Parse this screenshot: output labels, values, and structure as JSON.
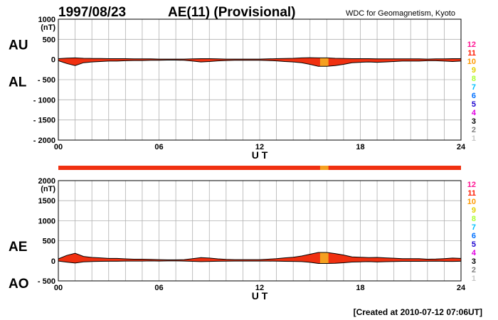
{
  "header": {
    "date": "1997/08/23",
    "title": "AE(11) (Provisional)",
    "source": "WDC for Geomagnetism, Kyoto"
  },
  "footer": {
    "created": "[Created at 2010-07-12 07:06UT]"
  },
  "colors": {
    "fill_main": "#f03010",
    "fill_highlight": "#f5a020",
    "grid": "#b0b0b0",
    "trace": "#000000"
  },
  "station_count_legend": [
    {
      "label": "12",
      "color": "#ff1493"
    },
    {
      "label": "11",
      "color": "#ff1a00"
    },
    {
      "label": "10",
      "color": "#ff9900"
    },
    {
      "label": "9",
      "color": "#e0d000"
    },
    {
      "label": "8",
      "color": "#a8ff30"
    },
    {
      "label": "7",
      "color": "#00c0ff"
    },
    {
      "label": "6",
      "color": "#0070ff"
    },
    {
      "label": "5",
      "color": "#1a00d0"
    },
    {
      "label": "4",
      "color": "#e000e0"
    },
    {
      "label": "3",
      "color": "#000000"
    },
    {
      "label": "2",
      "color": "#808080"
    },
    {
      "label": "1",
      "color": "#c8c8c8"
    }
  ],
  "chart_data": [
    {
      "type": "area",
      "panel": "top",
      "label_upper": "AU",
      "label_lower": "AL",
      "unit": "(nT)",
      "xlabel": "U T",
      "ylim": [
        -2000,
        1000
      ],
      "yticks": [
        "1000",
        "500",
        "0",
        "- 500",
        "- 1000",
        "- 1500",
        "- 2000"
      ],
      "ytick_values": [
        1000,
        500,
        0,
        -500,
        -1000,
        -1500,
        -2000
      ],
      "xlim": [
        0,
        24
      ],
      "xticks": [
        "00",
        "06",
        "12",
        "18",
        "24"
      ],
      "xtick_values": [
        0,
        6,
        12,
        18,
        24
      ],
      "highlight_interval": [
        15.6,
        16.1
      ],
      "series": [
        {
          "name": "AU",
          "x": [
            0,
            0.5,
            1,
            1.5,
            2,
            2.5,
            3,
            3.5,
            4,
            4.5,
            5,
            5.5,
            6,
            6.5,
            7,
            7.5,
            8,
            8.5,
            9,
            9.5,
            10,
            10.5,
            11,
            11.5,
            12,
            12.5,
            13,
            13.5,
            14,
            14.5,
            15,
            15.5,
            16,
            16.5,
            17,
            17.5,
            18,
            18.5,
            19,
            19.5,
            20,
            20.5,
            21,
            21.5,
            22,
            22.5,
            23,
            23.5,
            24
          ],
          "values": [
            20,
            35,
            40,
            30,
            25,
            25,
            20,
            20,
            20,
            15,
            15,
            15,
            10,
            10,
            10,
            10,
            15,
            20,
            20,
            15,
            10,
            10,
            10,
            10,
            10,
            15,
            20,
            25,
            30,
            40,
            45,
            40,
            40,
            30,
            25,
            20,
            20,
            20,
            15,
            15,
            15,
            15,
            15,
            15,
            10,
            15,
            15,
            20,
            20
          ]
        },
        {
          "name": "AL",
          "x": [
            0,
            0.5,
            1,
            1.5,
            2,
            2.5,
            3,
            3.5,
            4,
            4.5,
            5,
            5.5,
            6,
            6.5,
            7,
            7.5,
            8,
            8.5,
            9,
            9.5,
            10,
            10.5,
            11,
            11.5,
            12,
            12.5,
            13,
            13.5,
            14,
            14.5,
            15,
            15.5,
            16,
            16.5,
            17,
            17.5,
            18,
            18.5,
            19,
            19.5,
            20,
            20.5,
            21,
            21.5,
            22,
            22.5,
            23,
            23.5,
            24
          ],
          "values": [
            -30,
            -100,
            -150,
            -80,
            -60,
            -50,
            -40,
            -40,
            -30,
            -25,
            -25,
            -20,
            -20,
            -15,
            -15,
            -20,
            -40,
            -60,
            -50,
            -35,
            -25,
            -20,
            -20,
            -20,
            -20,
            -25,
            -35,
            -50,
            -60,
            -80,
            -120,
            -170,
            -170,
            -150,
            -120,
            -80,
            -70,
            -60,
            -70,
            -60,
            -50,
            -40,
            -40,
            -40,
            -30,
            -30,
            -40,
            -50,
            -40
          ]
        }
      ]
    },
    {
      "type": "area",
      "panel": "bottom",
      "label_upper": "AE",
      "label_lower": "AO",
      "unit": "(nT)",
      "xlabel": "U T",
      "ylim": [
        -500,
        2000
      ],
      "yticks": [
        "2000",
        "1500",
        "1000",
        "500",
        "0",
        "- 500"
      ],
      "ytick_values": [
        2000,
        1500,
        1000,
        500,
        0,
        -500
      ],
      "xlim": [
        0,
        24
      ],
      "xticks": [
        "00",
        "06",
        "12",
        "18",
        "24"
      ],
      "xtick_values": [
        0,
        6,
        12,
        18,
        24
      ],
      "highlight_interval": [
        15.6,
        16.1
      ],
      "series": [
        {
          "name": "AE",
          "x": [
            0,
            0.5,
            1,
            1.5,
            2,
            2.5,
            3,
            3.5,
            4,
            4.5,
            5,
            5.5,
            6,
            6.5,
            7,
            7.5,
            8,
            8.5,
            9,
            9.5,
            10,
            10.5,
            11,
            11.5,
            12,
            12.5,
            13,
            13.5,
            14,
            14.5,
            15,
            15.5,
            16,
            16.5,
            17,
            17.5,
            18,
            18.5,
            19,
            19.5,
            20,
            20.5,
            21,
            21.5,
            22,
            22.5,
            23,
            23.5,
            24
          ],
          "values": [
            50,
            135,
            190,
            110,
            85,
            75,
            60,
            60,
            50,
            40,
            40,
            35,
            30,
            25,
            25,
            30,
            55,
            80,
            70,
            50,
            35,
            30,
            30,
            30,
            30,
            40,
            55,
            75,
            90,
            120,
            165,
            210,
            210,
            180,
            145,
            100,
            90,
            80,
            85,
            75,
            65,
            55,
            55,
            55,
            40,
            45,
            55,
            70,
            60
          ]
        },
        {
          "name": "AO",
          "x": [
            0,
            0.5,
            1,
            1.5,
            2,
            2.5,
            3,
            3.5,
            4,
            4.5,
            5,
            5.5,
            6,
            6.5,
            7,
            7.5,
            8,
            8.5,
            9,
            9.5,
            10,
            10.5,
            11,
            11.5,
            12,
            12.5,
            13,
            13.5,
            14,
            14.5,
            15,
            15.5,
            16,
            16.5,
            17,
            17.5,
            18,
            18.5,
            19,
            19.5,
            20,
            20.5,
            21,
            21.5,
            22,
            22.5,
            23,
            23.5,
            24
          ],
          "values": [
            -5,
            -32,
            -55,
            -25,
            -18,
            -12,
            -10,
            -10,
            -5,
            -5,
            -5,
            -2,
            -5,
            -2,
            -2,
            -5,
            -12,
            -20,
            -15,
            -10,
            -8,
            -5,
            -5,
            -5,
            -5,
            -5,
            -8,
            -12,
            -15,
            -20,
            -38,
            -65,
            -65,
            -60,
            -48,
            -30,
            -25,
            -20,
            -28,
            -22,
            -18,
            -12,
            -12,
            -12,
            -10,
            -8,
            -12,
            -15,
            -10
          ]
        }
      ]
    }
  ]
}
